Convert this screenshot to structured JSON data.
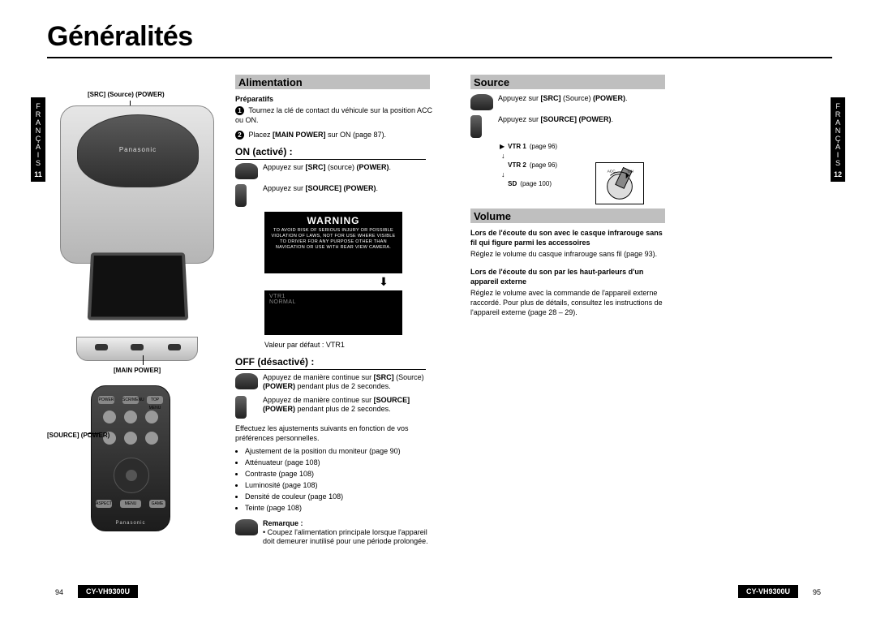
{
  "title": "Généralités",
  "side_tab": {
    "lang": "FRANÇAIS",
    "page_left": "11",
    "page_right": "12"
  },
  "footer": {
    "model": "CY-VH9300U",
    "page_left": "94",
    "page_right": "95"
  },
  "labels": {
    "src_power": "[SRC] (Source) (POWER)",
    "main_power": "[MAIN POWER]",
    "source_power": "[SOURCE] (POWER)"
  },
  "alimentation": {
    "heading": "Alimentation",
    "preparatifs_title": "Préparatifs",
    "prep_step1": "Tournez la clé de contact du véhicule sur la position ACC ou ON.",
    "prep_step2_a": "Placez ",
    "prep_step2_b": "[MAIN POWER]",
    "prep_step2_c": " sur ON (page 87).",
    "on_title": "ON (activé) :",
    "on_line1_a": "Appuyez sur ",
    "on_line1_b": "[SRC]",
    "on_line1_c": " (source) ",
    "on_line1_d": "(POWER)",
    "on_line1_e": ".",
    "on_line2_a": "Appuyez sur ",
    "on_line2_b": "[SOURCE]",
    "on_line2_c": " ",
    "on_line2_d": "(POWER)",
    "on_line2_e": ".",
    "warning_title": "WARNING",
    "warning_body": "TO AVOID RISK OF SERIOUS INJURY OR POSSIBLE VIOLATION OF LAWS, NOT FOR USE WHERE VISIBLE TO DRIVER FOR ANY PURPOSE OTHER THAN NAVIGATION OR USE WITH REAR VIEW CAMERA.",
    "mode_line1": "VTR1",
    "mode_line2": "NORMAL",
    "default_value": "Valeur par défaut : VTR1",
    "off_title": "OFF (désactivé) :",
    "off_line1_a": "Appuyez de manière continue sur ",
    "off_line1_b": "[SRC]",
    "off_line1_c": " (Source) ",
    "off_line1_d": "(POWER)",
    "off_line1_e": " pendant plus de 2 secondes.",
    "off_line2_a": "Appuyez de manière continue sur ",
    "off_line2_b": "[SOURCE]",
    "off_line2_c": " ",
    "off_line2_d": "(POWER)",
    "off_line2_e": " pendant plus de 2 secondes.",
    "adjust_intro": "Effectuez les ajustements suivants en fonction de vos préférences personnelles.",
    "adjust_items": [
      "Ajustement de la position du moniteur (page 90)",
      "Atténuateur (page 108)",
      "Contraste (page 108)",
      "Luminosité (page 108)",
      "Densité de couleur (page 108)",
      "Teinte (page 108)"
    ],
    "remark_title": "Remarque :",
    "remark_text": "Coupez l'alimentation principale lorsque l'appareil doit demeurer inutilisé pour une période prolongée."
  },
  "source": {
    "heading": "Source",
    "line1_a": "Appuyez sur ",
    "line1_b": "[SRC]",
    "line1_c": " (Source) ",
    "line1_d": "(POWER)",
    "line1_e": ".",
    "line2_a": "Appuyez sur ",
    "line2_b": "[SOURCE]",
    "line2_c": " ",
    "line2_d": "(POWER)",
    "line2_e": ".",
    "flow": {
      "vtr1": "VTR 1",
      "vtr1_ref": "(page 96)",
      "vtr2": "VTR 2",
      "vtr2_ref": "(page 96)",
      "sd": "SD",
      "sd_ref": "(page 100)"
    }
  },
  "volume": {
    "heading": "Volume",
    "block1_title": "Lors de l'écoute du son avec le casque infrarouge sans fil qui figure parmi les accessoires",
    "block1_text": "Réglez le volume du casque infrarouge sans fil (page 93).",
    "block2_title": "Lors de l'écoute du son par les haut-parleurs d'un appareil externe",
    "block2_text": "Réglez le volume avec la commande de l'appareil externe raccordé. Pour plus de détails, consultez les instructions de l'appareil externe (page 28 – 29)."
  },
  "remote_buttons": {
    "top": [
      "POWER",
      "SCR/MENU",
      "TOP MENU"
    ],
    "mid": [
      "STOP",
      "PAUSE",
      "PLAY"
    ],
    "search": [
      "FILE SEARCH",
      "",
      "FILE SEARCH"
    ],
    "bottom": [
      "ASPECT",
      "GAME"
    ],
    "menu": "MENU",
    "enter": "ENTER",
    "brand": "Panasonic",
    "sub": "CAR AV"
  },
  "brand_main": "Panasonic",
  "colors": {
    "section_bg": "#bfbfbf"
  }
}
